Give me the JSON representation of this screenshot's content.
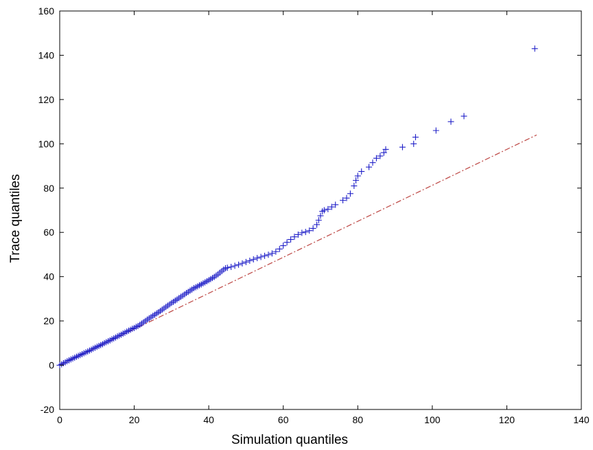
{
  "chart_data": {
    "type": "scatter",
    "title": "",
    "xlabel": "Simulation quantiles",
    "ylabel": "Trace quantiles",
    "xlim": [
      0,
      140
    ],
    "ylim": [
      -20,
      160
    ],
    "xticks": [
      "0",
      "20",
      "40",
      "60",
      "80",
      "100",
      "120",
      "140"
    ],
    "yticks": [
      "-20",
      "0",
      "20",
      "40",
      "60",
      "80",
      "100",
      "120",
      "140",
      "160"
    ],
    "grid": false,
    "marker": "plus",
    "marker_color": "#1f1fc8",
    "reference_line": {
      "style": "dash-dot",
      "color": "#c0504d",
      "points": [
        [
          0,
          0
        ],
        [
          128,
          104
        ]
      ]
    },
    "series": [
      {
        "points": [
          [
            0,
            0
          ],
          [
            0.5,
            0.4
          ],
          [
            1,
            0.9
          ],
          [
            1.5,
            1.3
          ],
          [
            2,
            1.8
          ],
          [
            2.5,
            2.2
          ],
          [
            3,
            2.6
          ],
          [
            3.5,
            3.0
          ],
          [
            4,
            3.4
          ],
          [
            4.5,
            3.8
          ],
          [
            5,
            4.2
          ],
          [
            5.5,
            4.6
          ],
          [
            6,
            5.0
          ],
          [
            6.5,
            5.4
          ],
          [
            7,
            5.8
          ],
          [
            7.5,
            6.2
          ],
          [
            8,
            6.6
          ],
          [
            8.5,
            7.0
          ],
          [
            9,
            7.5
          ],
          [
            9.5,
            7.9
          ],
          [
            10,
            8.3
          ],
          [
            10.5,
            8.7
          ],
          [
            11,
            9.1
          ],
          [
            11.5,
            9.5
          ],
          [
            12,
            10.0
          ],
          [
            12.5,
            10.4
          ],
          [
            13,
            10.8
          ],
          [
            13.5,
            11.2
          ],
          [
            14,
            11.7
          ],
          [
            14.5,
            12.1
          ],
          [
            15,
            12.5
          ],
          [
            15.5,
            13.0
          ],
          [
            16,
            13.4
          ],
          [
            16.5,
            13.8
          ],
          [
            17,
            14.3
          ],
          [
            17.5,
            14.7
          ],
          [
            18,
            15.2
          ],
          [
            18.5,
            15.6
          ],
          [
            19,
            16.0
          ],
          [
            19.5,
            16.5
          ],
          [
            20,
            16.8
          ],
          [
            20.5,
            17.3
          ],
          [
            21,
            17.7
          ],
          [
            21.5,
            18.2
          ],
          [
            22,
            18.8
          ],
          [
            22.5,
            19.4
          ],
          [
            23,
            20.0
          ],
          [
            23.5,
            20.6
          ],
          [
            24,
            21.2
          ],
          [
            24.5,
            21.7
          ],
          [
            25,
            22.3
          ],
          [
            25.5,
            22.8
          ],
          [
            26,
            23.4
          ],
          [
            26.5,
            23.9
          ],
          [
            27,
            24.5
          ],
          [
            27.5,
            25.1
          ],
          [
            28,
            25.7
          ],
          [
            28.5,
            26.3
          ],
          [
            29,
            26.9
          ],
          [
            29.5,
            27.5
          ],
          [
            30,
            28.1
          ],
          [
            30.5,
            28.6
          ],
          [
            31,
            29.2
          ],
          [
            31.5,
            29.7
          ],
          [
            32,
            30.3
          ],
          [
            32.5,
            30.9
          ],
          [
            33,
            31.4
          ],
          [
            33.5,
            32.0
          ],
          [
            34,
            32.6
          ],
          [
            34.5,
            33.1
          ],
          [
            35,
            33.7
          ],
          [
            35.5,
            34.2
          ],
          [
            36,
            34.8
          ],
          [
            36.5,
            35.2
          ],
          [
            37,
            35.6
          ],
          [
            37.5,
            36.1
          ],
          [
            38,
            36.5
          ],
          [
            38.5,
            37.0
          ],
          [
            39,
            37.4
          ],
          [
            39.5,
            37.9
          ],
          [
            40,
            38.4
          ],
          [
            40.5,
            38.9
          ],
          [
            41,
            39.4
          ],
          [
            41.5,
            39.9
          ],
          [
            42,
            40.5
          ],
          [
            42.5,
            41.1
          ],
          [
            43,
            41.8
          ],
          [
            43.5,
            42.5
          ],
          [
            44,
            43.2
          ],
          [
            44.5,
            43.8
          ],
          [
            45,
            44.0
          ],
          [
            46,
            44.4
          ],
          [
            47,
            44.9
          ],
          [
            48,
            45.4
          ],
          [
            49,
            46.0
          ],
          [
            50,
            46.6
          ],
          [
            51,
            47.2
          ],
          [
            52,
            47.8
          ],
          [
            53,
            48.4
          ],
          [
            54,
            48.9
          ],
          [
            55,
            49.4
          ],
          [
            56,
            49.9
          ],
          [
            57,
            50.5
          ],
          [
            58,
            51.3
          ],
          [
            59,
            52.5
          ],
          [
            60,
            54.0
          ],
          [
            61,
            55.5
          ],
          [
            62,
            56.8
          ],
          [
            63,
            58.0
          ],
          [
            64,
            59.0
          ],
          [
            65,
            59.8
          ],
          [
            66,
            60.2
          ],
          [
            67,
            60.8
          ],
          [
            68,
            61.8
          ],
          [
            69,
            63.5
          ],
          [
            69.5,
            65.5
          ],
          [
            70,
            67.5
          ],
          [
            70.5,
            69.5
          ],
          [
            71,
            70.0
          ],
          [
            72,
            70.5
          ],
          [
            73,
            71.5
          ],
          [
            74,
            72.5
          ],
          [
            76,
            74.5
          ],
          [
            77,
            75.5
          ],
          [
            78,
            77.5
          ],
          [
            79,
            81.0
          ],
          [
            79.5,
            83.5
          ],
          [
            80,
            85.5
          ],
          [
            81,
            87.5
          ],
          [
            83,
            89.5
          ],
          [
            84,
            91.5
          ],
          [
            85,
            93.5
          ],
          [
            86,
            94.5
          ],
          [
            87,
            96.0
          ],
          [
            87.5,
            97.5
          ],
          [
            92,
            98.5
          ],
          [
            95,
            100.0
          ],
          [
            95.5,
            103.0
          ],
          [
            101,
            106.0
          ],
          [
            105,
            110.0
          ],
          [
            108.5,
            112.5
          ],
          [
            127.5,
            143.0
          ]
        ]
      }
    ]
  }
}
